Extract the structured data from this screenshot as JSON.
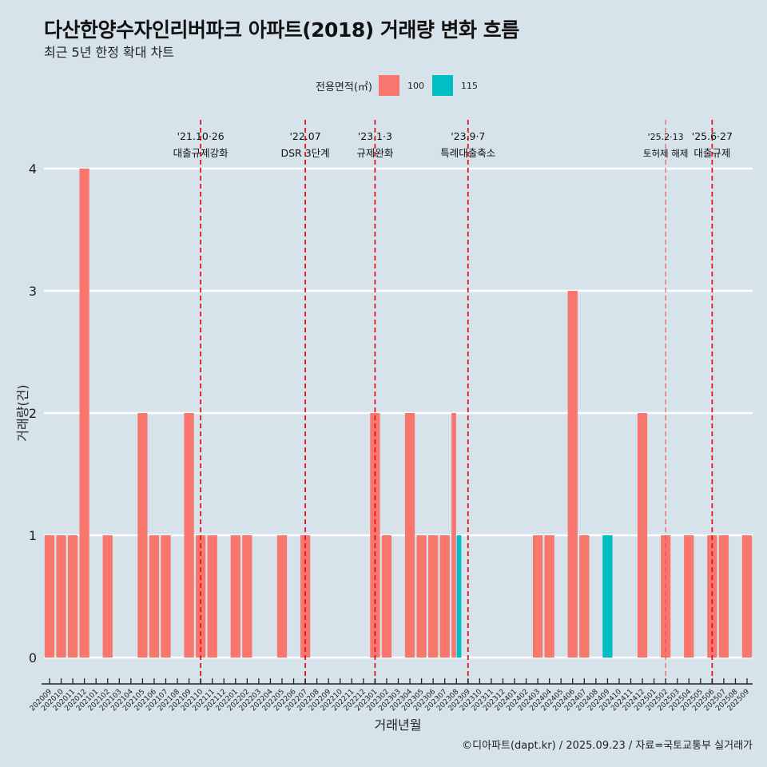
{
  "title": "다산한양수자인리버파크 아파트(2018) 거래량 변화 흐름",
  "subtitle": "최근 5년 한정 확대 차트",
  "footer": "©디아파트(dapt.kr) / 2025.09.23 / 자료=국토교통부 실거래가",
  "legend": {
    "title": "전용면적(㎡)",
    "items": [
      {
        "label": "100",
        "color": "#f8766d"
      },
      {
        "label": "115",
        "color": "#00bfc4"
      }
    ]
  },
  "chart_data": {
    "type": "bar",
    "title": "다산한양수자인리버파크 아파트(2018) 거래량 변화 흐름",
    "xlabel": "거래년월",
    "ylabel": "거래량(건)",
    "ylim": [
      0,
      4
    ],
    "yticks": [
      "0",
      "1",
      "2",
      "3",
      "4"
    ],
    "grid": true,
    "legend_position": "top",
    "categories": [
      "202009",
      "202010",
      "202011",
      "202012",
      "202101",
      "202102",
      "202103",
      "202104",
      "202105",
      "202106",
      "202107",
      "202108",
      "202109",
      "202110",
      "202111",
      "202112",
      "202201",
      "202202",
      "202203",
      "202204",
      "202205",
      "202206",
      "202207",
      "202208",
      "202209",
      "202210",
      "202211",
      "202212",
      "202301",
      "202302",
      "202303",
      "202304",
      "202305",
      "202306",
      "202307",
      "202308",
      "202309",
      "202310",
      "202311",
      "202312",
      "202401",
      "202402",
      "202403",
      "202404",
      "202405",
      "202406",
      "202407",
      "202408",
      "202409",
      "202410",
      "202411",
      "202412",
      "202501",
      "202502",
      "202503",
      "202504",
      "202505",
      "202506",
      "202507",
      "202508",
      "202509"
    ],
    "series": [
      {
        "name": "100",
        "color": "#f8766d",
        "values": [
          1,
          1,
          1,
          4,
          0,
          1,
          0,
          0,
          2,
          1,
          1,
          0,
          2,
          1,
          1,
          0,
          1,
          1,
          0,
          0,
          1,
          0,
          1,
          0,
          0,
          0,
          0,
          0,
          2,
          1,
          0,
          2,
          1,
          1,
          1,
          2,
          0,
          0,
          0,
          0,
          0,
          0,
          1,
          1,
          0,
          3,
          1,
          0,
          0,
          0,
          0,
          2,
          0,
          1,
          0,
          1,
          0,
          1,
          1,
          0,
          1
        ]
      },
      {
        "name": "115",
        "color": "#00bfc4",
        "values": [
          0,
          0,
          0,
          0,
          0,
          0,
          0,
          0,
          0,
          0,
          0,
          0,
          0,
          0,
          0,
          0,
          0,
          0,
          0,
          0,
          0,
          0,
          0,
          0,
          0,
          0,
          0,
          0,
          0,
          0,
          0,
          0,
          0,
          0,
          0,
          1,
          0,
          0,
          0,
          0,
          0,
          0,
          0,
          0,
          0,
          0,
          0,
          0,
          1,
          0,
          0,
          0,
          0,
          0,
          0,
          0,
          0,
          0,
          0,
          0,
          0
        ]
      }
    ],
    "annotations": [
      {
        "x": "202110",
        "date": "'21.10·26",
        "label": "대출규제강화",
        "style": "strong"
      },
      {
        "x": "202207",
        "date": "'22.07",
        "label": "DSR 3단계",
        "style": "strong"
      },
      {
        "x": "202301",
        "date": "'23.1·3",
        "label": "규제완화",
        "style": "strong"
      },
      {
        "x": "202309",
        "date": "'23.9·7",
        "label": "특례대출축소",
        "style": "strong"
      },
      {
        "x": "202502",
        "date": "'25.2·13",
        "label": "토허제 해제",
        "style": "light"
      },
      {
        "x": "202506",
        "date": "'25.6·27",
        "label": "대출규제",
        "style": "strong"
      }
    ]
  }
}
